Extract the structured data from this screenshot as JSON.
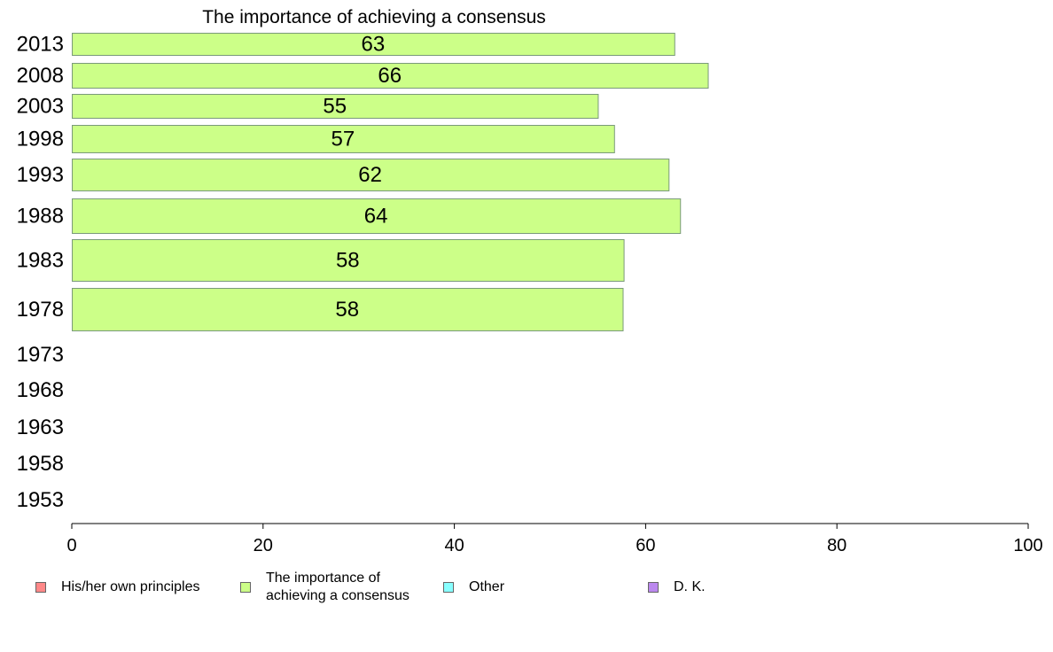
{
  "chart_data": {
    "type": "bar",
    "orientation": "horizontal",
    "title": "The importance of achieving a consensus",
    "xlabel": "",
    "ylabel": "",
    "xlim": [
      0,
      100
    ],
    "x_ticks": [
      "0",
      "20",
      "40",
      "60",
      "80",
      "100"
    ],
    "categories": [
      "2013",
      "2008",
      "2003",
      "1998",
      "1993",
      "1988",
      "1983",
      "1978",
      "1973",
      "1968",
      "1963",
      "1958",
      "1953"
    ],
    "series": [
      {
        "name": "The importance of achieving a consensus",
        "color": "#ccff88",
        "values": [
          63,
          66.5,
          55,
          56.7,
          62.4,
          63.6,
          57.7,
          57.6,
          null,
          null,
          null,
          null,
          null
        ],
        "labels": [
          "63",
          "66",
          "55",
          "57",
          "62",
          "64",
          "58",
          "58",
          "",
          "",
          "",
          "",
          ""
        ]
      }
    ],
    "legend": {
      "placement": "bottom",
      "items": [
        {
          "label": "His/her own principles",
          "color": "#ff8888"
        },
        {
          "label": "The importance of achieving a consensus",
          "color": "#ccff88"
        },
        {
          "label": "Other",
          "color": "#88ffff"
        },
        {
          "label": "D. K.",
          "color": "#bb88ee"
        }
      ]
    }
  }
}
